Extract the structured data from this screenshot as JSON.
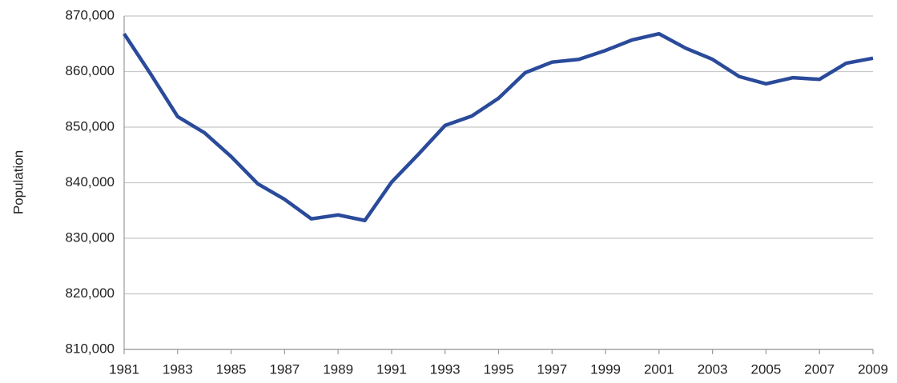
{
  "chart_data": {
    "type": "line",
    "y_label": "Population",
    "x": [
      1981,
      1982,
      1983,
      1984,
      1985,
      1986,
      1987,
      1988,
      1989,
      1990,
      1991,
      1992,
      1993,
      1994,
      1995,
      1996,
      1997,
      1998,
      1999,
      2000,
      2001,
      2002,
      2003,
      2004,
      2005,
      2006,
      2007,
      2008,
      2009
    ],
    "series": [
      {
        "name": "Population",
        "color": "#2a4a9a",
        "values": [
          866800,
          859500,
          851900,
          849000,
          844700,
          839800,
          837000,
          833500,
          834200,
          833200,
          840100,
          845100,
          850300,
          852000,
          855200,
          859800,
          861700,
          862200,
          863800,
          865700,
          866800,
          864200,
          862200,
          859100,
          857800,
          858900,
          858600,
          861500,
          862400
        ]
      }
    ],
    "xlim": [
      1981,
      2009
    ],
    "xticks": [
      1981,
      1983,
      1985,
      1987,
      1989,
      1991,
      1993,
      1995,
      1997,
      1999,
      2001,
      2003,
      2005,
      2007,
      2009
    ],
    "ylim": [
      810000,
      870000
    ],
    "yticks": [
      {
        "value": 810000,
        "label": "810,000"
      },
      {
        "value": 820000,
        "label": "820,000"
      },
      {
        "value": 830000,
        "label": "830,000"
      },
      {
        "value": 840000,
        "label": "840,000"
      },
      {
        "value": 850000,
        "label": "850,000"
      },
      {
        "value": 860000,
        "label": "860,000"
      },
      {
        "value": 870000,
        "label": "870,000"
      }
    ],
    "grid": true
  }
}
